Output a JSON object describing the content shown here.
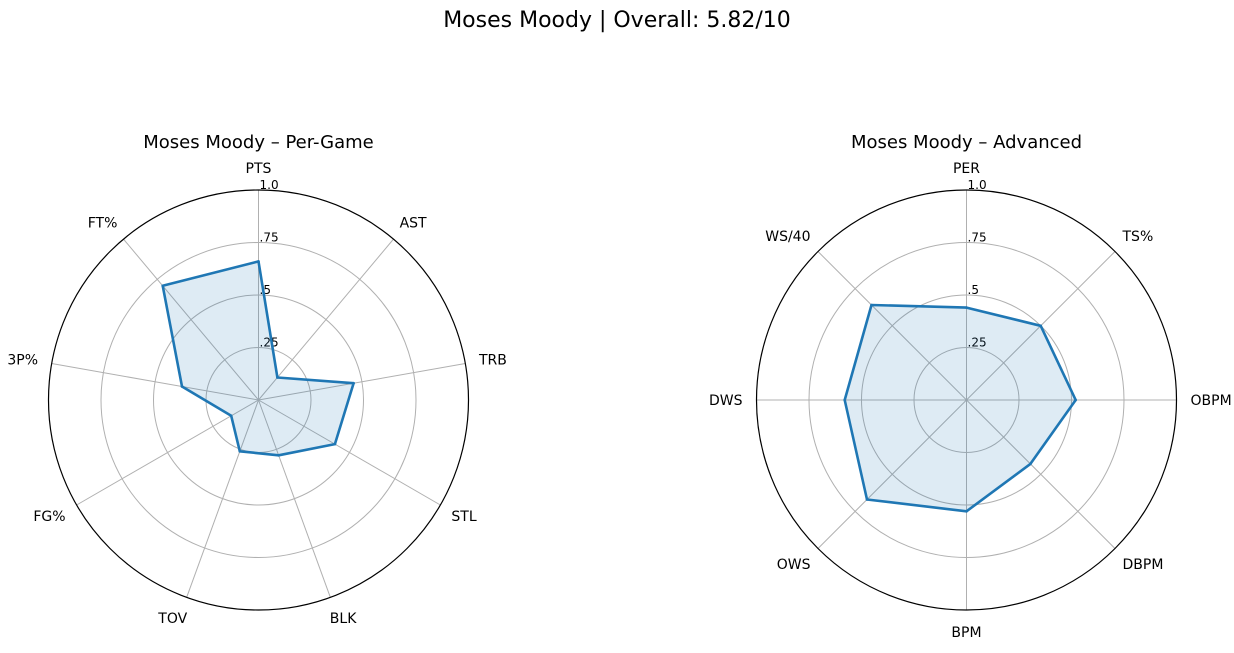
{
  "title": "Moses Moody | Overall: 5.82/10",
  "colors": {
    "line": "#1f77b4",
    "fill": "#1f77b4",
    "grid": "#b0b0b0"
  },
  "chart_data": [
    {
      "type": "radar",
      "title": "Moses Moody – Per-Game",
      "categories": [
        "PTS",
        "AST",
        "TRB",
        "STL",
        "BLK",
        "TOV",
        "FG%",
        "3P%",
        "FT%"
      ],
      "values": [
        0.66,
        0.14,
        0.46,
        0.42,
        0.28,
        0.26,
        0.15,
        0.37,
        0.71
      ],
      "ylim": [
        0,
        1
      ],
      "ticks": [
        0.25,
        0.5,
        0.75,
        1.0
      ],
      "tick_labels": [
        ".25",
        ".5",
        ".75",
        "1.0"
      ],
      "grid": true
    },
    {
      "type": "radar",
      "title": "Moses Moody – Advanced",
      "categories": [
        "PER",
        "TS%",
        "OBPM",
        "DBPM",
        "BPM",
        "OWS",
        "DWS",
        "WS/40"
      ],
      "values": [
        0.44,
        0.5,
        0.52,
        0.43,
        0.53,
        0.67,
        0.58,
        0.64
      ],
      "ylim": [
        0,
        1
      ],
      "ticks": [
        0.25,
        0.5,
        0.75,
        1.0
      ],
      "tick_labels": [
        ".25",
        ".5",
        ".75",
        "1.0"
      ],
      "grid": true
    }
  ]
}
